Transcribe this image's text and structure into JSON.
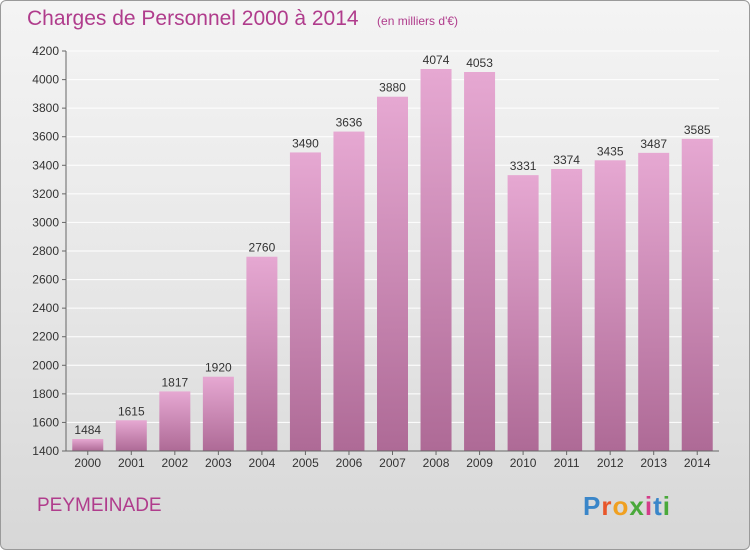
{
  "header": {
    "title": "Charges de Personnel 2000 à 2014",
    "subtitle": "(en milliers d'€)"
  },
  "footer": {
    "commune": "PEYMEINADE",
    "logo_text": "Proxiti"
  },
  "colors": {
    "bar_top": "#e6a8d2",
    "bar_bottom": "#ae6a96",
    "text_accent": "#b03c8c",
    "grid": "#ffffff",
    "axis": "#666666"
  },
  "chart_data": {
    "type": "bar",
    "categories": [
      "2000",
      "2001",
      "2002",
      "2003",
      "2004",
      "2005",
      "2006",
      "2007",
      "2008",
      "2009",
      "2010",
      "2011",
      "2012",
      "2013",
      "2014"
    ],
    "values": [
      1484,
      1615,
      1817,
      1920,
      2760,
      3490,
      3636,
      3880,
      4074,
      4053,
      3331,
      3374,
      3435,
      3487,
      3585
    ],
    "title": "Charges de Personnel 2000 à 2014",
    "subtitle": "(en milliers d'€)",
    "ylim": [
      1400,
      4200
    ],
    "yticks": [
      1400,
      1600,
      1800,
      2000,
      2200,
      2400,
      2600,
      2800,
      3000,
      3200,
      3400,
      3600,
      3800,
      4000,
      4200
    ],
    "grid": true,
    "legend": "none"
  }
}
